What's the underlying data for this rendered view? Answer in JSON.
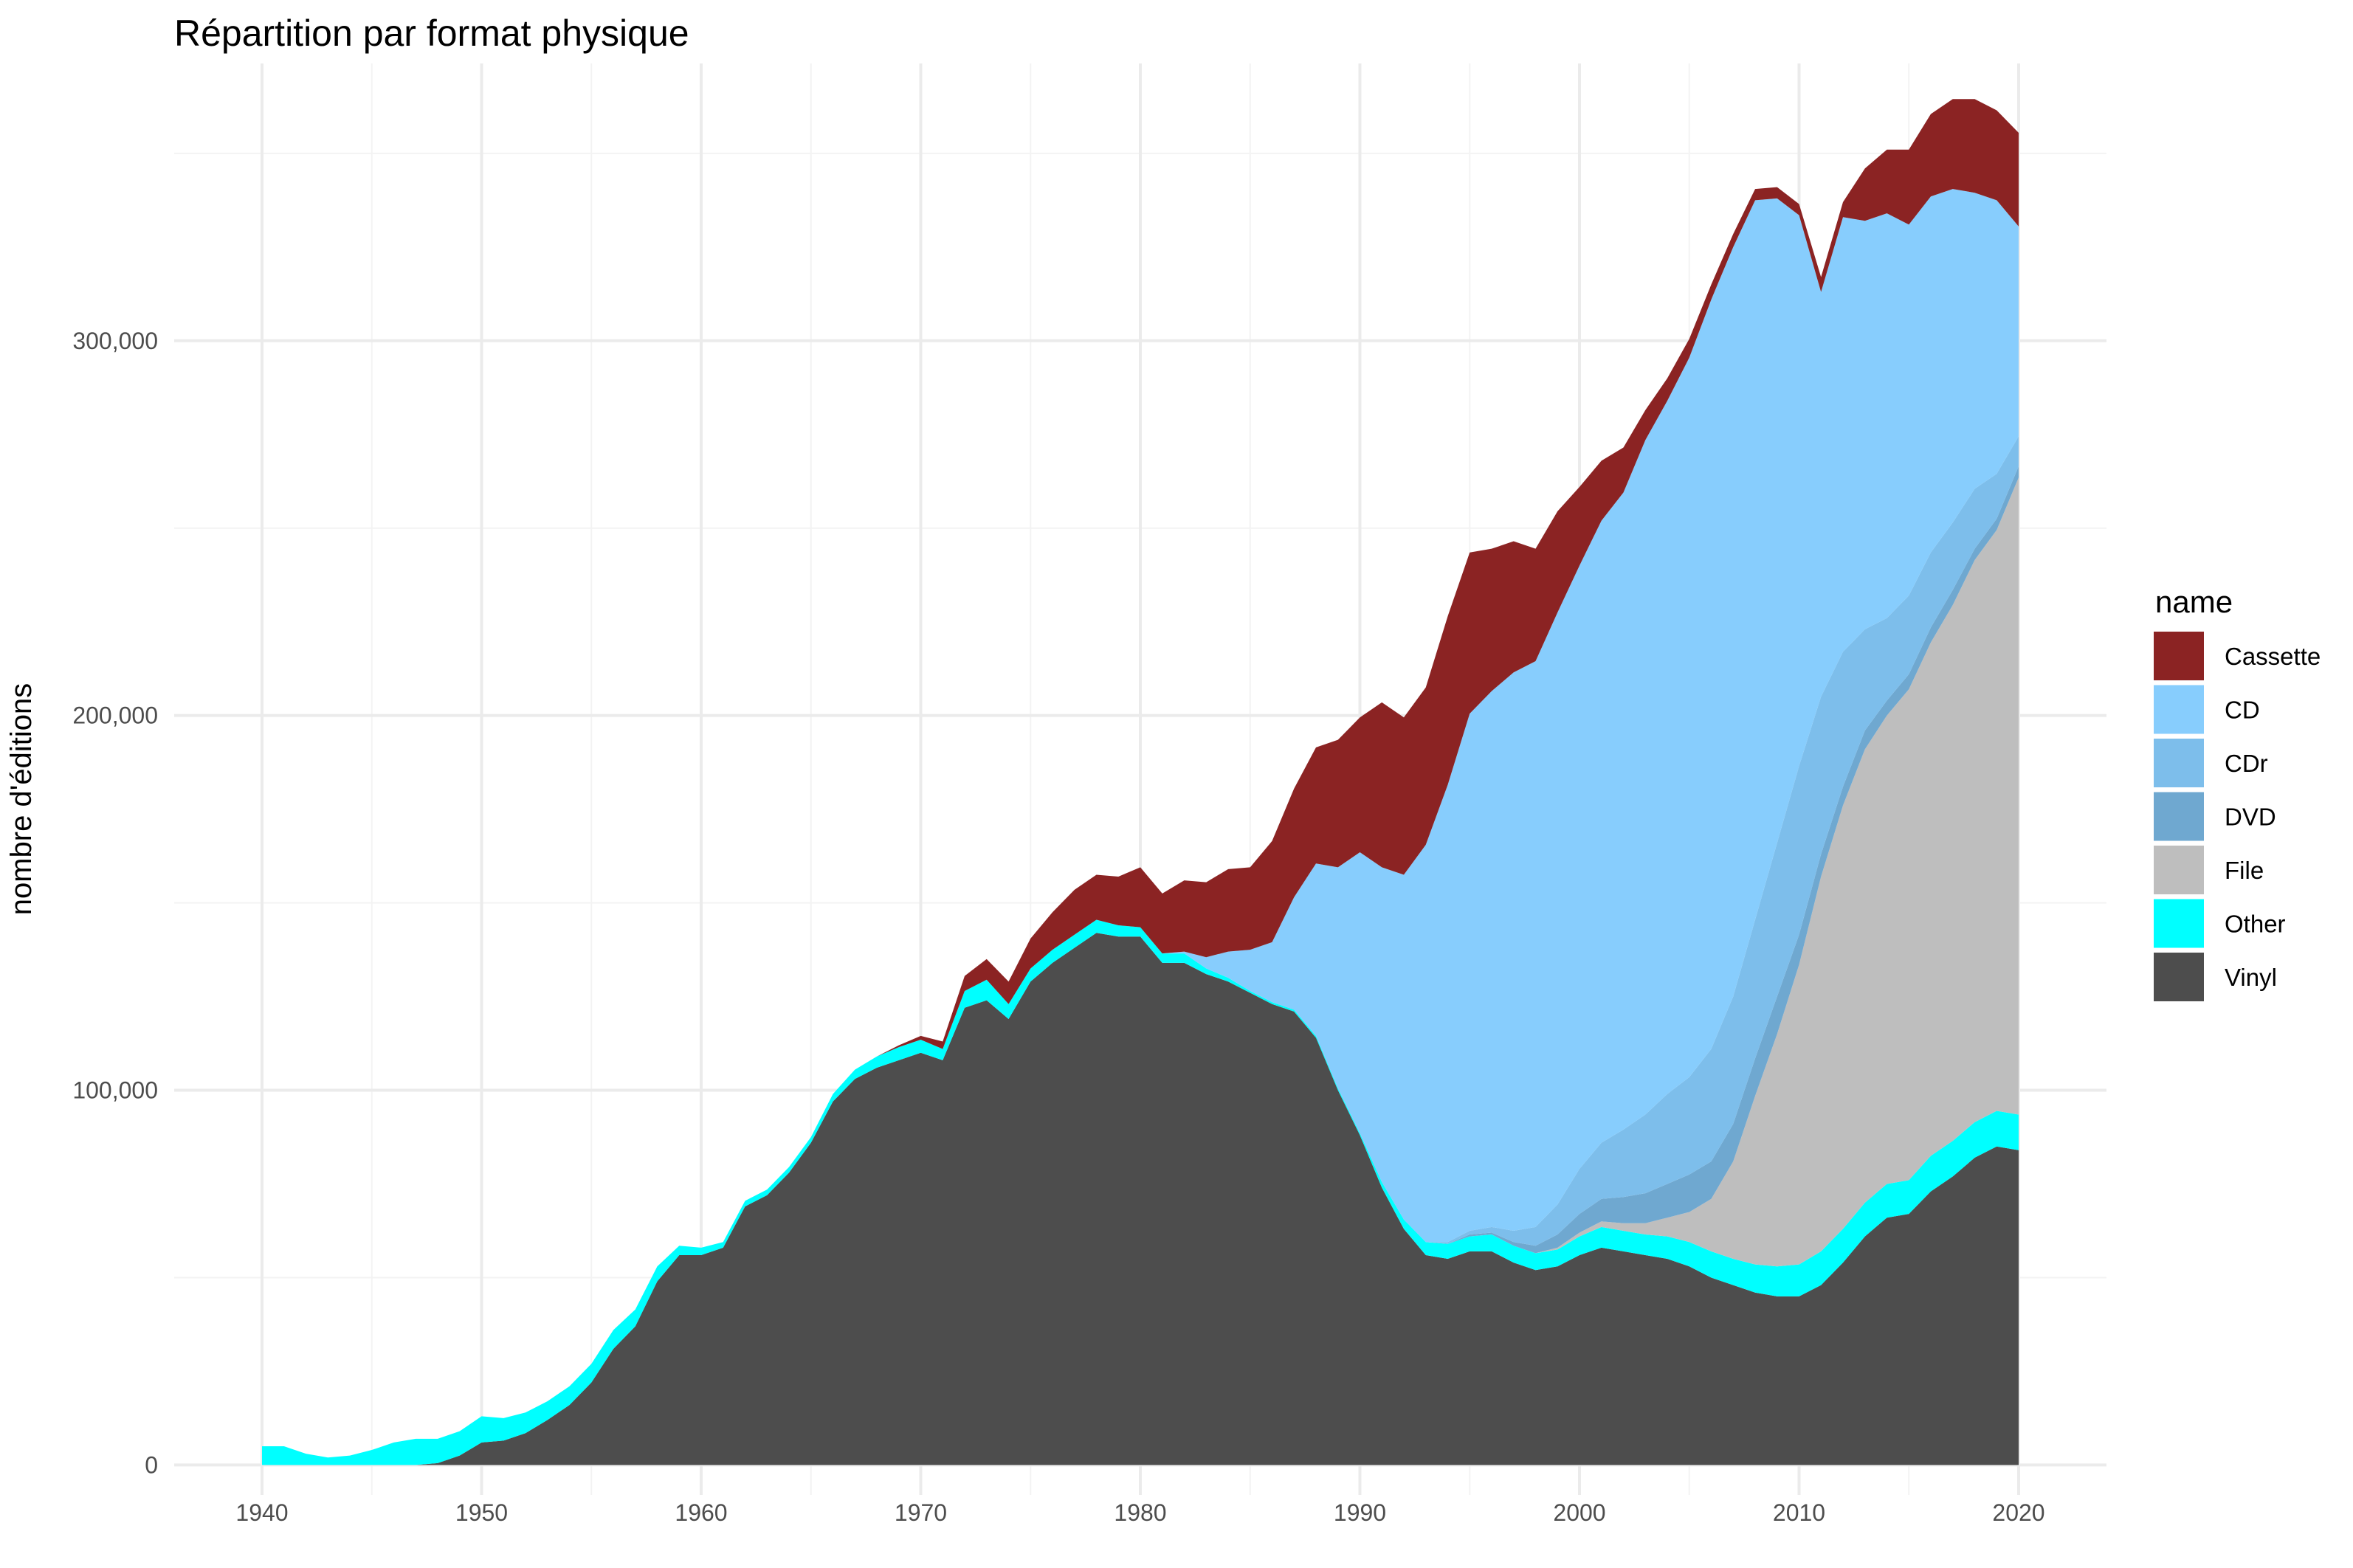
{
  "chart_data": {
    "type": "area",
    "stacked": true,
    "title": "Répartition par format physique",
    "xlabel": "",
    "ylabel": "nombre d'éditions",
    "xlim": [
      1936,
      2024
    ],
    "ylim": [
      -8000,
      374000
    ],
    "x_ticks": [
      1940,
      1950,
      1960,
      1970,
      1980,
      1990,
      2000,
      2010,
      2020
    ],
    "y_ticks": [
      0,
      100000,
      200000,
      300000
    ],
    "y_tick_labels": [
      "0",
      "100,000",
      "200,000",
      "300,000"
    ],
    "grid": true,
    "legend": {
      "title": "name",
      "position": "right"
    },
    "x": [
      1940,
      1941,
      1942,
      1943,
      1944,
      1945,
      1946,
      1947,
      1948,
      1949,
      1950,
      1951,
      1952,
      1953,
      1954,
      1955,
      1956,
      1957,
      1958,
      1959,
      1960,
      1961,
      1962,
      1963,
      1964,
      1965,
      1966,
      1967,
      1968,
      1969,
      1970,
      1971,
      1972,
      1973,
      1974,
      1975,
      1976,
      1977,
      1978,
      1979,
      1980,
      1981,
      1982,
      1983,
      1984,
      1985,
      1986,
      1987,
      1988,
      1989,
      1990,
      1991,
      1992,
      1993,
      1994,
      1995,
      1996,
      1997,
      1998,
      1999,
      2000,
      2001,
      2002,
      2003,
      2004,
      2005,
      2006,
      2007,
      2008,
      2009,
      2010,
      2011,
      2012,
      2013,
      2014,
      2015,
      2016,
      2017,
      2018,
      2019,
      2020
    ],
    "series": [
      {
        "name": "Vinyl",
        "color": "#4d4d4d",
        "values": [
          0,
          0,
          0,
          0,
          0,
          0,
          0,
          0,
          500,
          2500,
          6000,
          6500,
          8500,
          12000,
          16000,
          22000,
          31000,
          37000,
          49000,
          56000,
          56000,
          58000,
          69000,
          72000,
          78000,
          86000,
          97000,
          103000,
          106000,
          108000,
          110000,
          108000,
          122000,
          124000,
          119000,
          129000,
          134000,
          138000,
          142000,
          141000,
          141000,
          134000,
          134000,
          131000,
          129000,
          126000,
          123000,
          121000,
          114000,
          100000,
          88000,
          74000,
          63000,
          56000,
          55000,
          57000,
          57000,
          54000,
          52000,
          53000,
          56000,
          58000,
          57000,
          56000,
          55000,
          53000,
          50000,
          48000,
          46000,
          45000,
          45000,
          48000,
          54000,
          61000,
          66000,
          67000,
          73000,
          77000,
          82000,
          85000,
          84000
        ]
      },
      {
        "name": "Other",
        "color": "#00ffff",
        "values": [
          5000,
          5000,
          3000,
          2000,
          2500,
          4000,
          6000,
          7000,
          6500,
          6500,
          7000,
          6000,
          5500,
          5000,
          5000,
          5000,
          5000,
          4500,
          4000,
          2500,
          2000,
          1500,
          1500,
          1500,
          1500,
          1500,
          2000,
          2500,
          3000,
          3500,
          3500,
          3000,
          4500,
          5500,
          4000,
          3500,
          3500,
          3500,
          3500,
          3000,
          2500,
          2500,
          2500,
          1500,
          1000,
          500,
          500,
          500,
          500,
          500,
          500,
          1500,
          2500,
          3500,
          4000,
          4000,
          4500,
          4500,
          4500,
          4500,
          5000,
          5500,
          5500,
          5500,
          6000,
          6500,
          7000,
          7000,
          7500,
          8000,
          8500,
          9000,
          9000,
          9000,
          9000,
          9000,
          9500,
          9500,
          9500,
          9500,
          9500
        ]
      },
      {
        "name": "File",
        "color": "#bebebe",
        "values": [
          0,
          0,
          0,
          0,
          0,
          0,
          0,
          0,
          0,
          0,
          0,
          0,
          0,
          0,
          0,
          0,
          0,
          0,
          0,
          0,
          0,
          0,
          0,
          0,
          0,
          0,
          0,
          0,
          0,
          0,
          0,
          0,
          0,
          0,
          0,
          0,
          0,
          0,
          0,
          0,
          0,
          0,
          0,
          0,
          0,
          0,
          0,
          0,
          0,
          0,
          0,
          0,
          0,
          0,
          0,
          0,
          0,
          0,
          0,
          500,
          1000,
          1500,
          2000,
          3000,
          5000,
          8000,
          14000,
          26000,
          45000,
          62000,
          80000,
          100000,
          113000,
          121000,
          125000,
          131000,
          137000,
          143000,
          150000,
          155000,
          170000
        ]
      },
      {
        "name": "DVD",
        "color": "#6fa8d0",
        "values": [
          0,
          0,
          0,
          0,
          0,
          0,
          0,
          0,
          0,
          0,
          0,
          0,
          0,
          0,
          0,
          0,
          0,
          0,
          0,
          0,
          0,
          0,
          0,
          0,
          0,
          0,
          0,
          0,
          0,
          0,
          0,
          0,
          0,
          0,
          0,
          0,
          0,
          0,
          0,
          0,
          0,
          0,
          0,
          0,
          0,
          0,
          0,
          0,
          0,
          0,
          0,
          0,
          0,
          0,
          0,
          500,
          500,
          1000,
          2000,
          3500,
          5000,
          6000,
          7000,
          8000,
          9000,
          10000,
          10000,
          10000,
          10000,
          10000,
          8000,
          6000,
          5000,
          5000,
          4000,
          4000,
          4000,
          4000,
          3000,
          3000,
          3000
        ]
      },
      {
        "name": "CDr",
        "color": "#7dbeeb",
        "values": [
          0,
          0,
          0,
          0,
          0,
          0,
          0,
          0,
          0,
          0,
          0,
          0,
          0,
          0,
          0,
          0,
          0,
          0,
          0,
          0,
          0,
          0,
          0,
          0,
          0,
          0,
          0,
          0,
          0,
          0,
          0,
          0,
          0,
          0,
          0,
          0,
          0,
          0,
          0,
          0,
          0,
          0,
          0,
          0,
          0,
          0,
          0,
          0,
          0,
          0,
          0,
          0,
          0,
          0,
          500,
          1000,
          1500,
          3000,
          5000,
          8000,
          12000,
          15000,
          18000,
          21000,
          24000,
          26000,
          30000,
          34000,
          37000,
          41000,
          45000,
          42000,
          36000,
          27000,
          22000,
          21000,
          20000,
          18000,
          16000,
          12000,
          8000
        ]
      },
      {
        "name": "CD",
        "color": "#87cdfd",
        "values": [
          0,
          0,
          0,
          0,
          0,
          0,
          0,
          0,
          0,
          0,
          0,
          0,
          0,
          0,
          0,
          0,
          0,
          0,
          0,
          0,
          0,
          0,
          0,
          0,
          0,
          0,
          0,
          0,
          0,
          0,
          0,
          0,
          0,
          0,
          0,
          0,
          0,
          0,
          0,
          0,
          0,
          0,
          500,
          3000,
          7000,
          11000,
          16000,
          30000,
          46000,
          59000,
          75000,
          84000,
          92000,
          106000,
          122000,
          138000,
          143000,
          149000,
          151000,
          158000,
          161000,
          166000,
          170000,
          180000,
          185000,
          192000,
          200000,
          200000,
          192000,
          172000,
          147000,
          108000,
          116000,
          109000,
          108000,
          99000,
          95000,
          89000,
          79000,
          73000,
          56000
        ]
      },
      {
        "name": "Cassette",
        "color": "#8b2323",
        "values": [
          0,
          0,
          0,
          0,
          0,
          0,
          0,
          0,
          0,
          0,
          0,
          0,
          0,
          0,
          0,
          0,
          0,
          0,
          0,
          0,
          0,
          0,
          0,
          0,
          0,
          0,
          0,
          0,
          0,
          500,
          1000,
          2000,
          4000,
          5500,
          6000,
          8000,
          10000,
          12000,
          12000,
          13000,
          16000,
          16000,
          19000,
          20000,
          22000,
          22000,
          27000,
          29000,
          31000,
          34000,
          36000,
          44000,
          42000,
          42000,
          45000,
          43000,
          38000,
          35000,
          30000,
          27000,
          21000,
          16000,
          12000,
          8000,
          6000,
          5000,
          4000,
          3500,
          3000,
          3000,
          3000,
          4000,
          4000,
          14000,
          17000,
          20000,
          22000,
          24000,
          25000,
          24000,
          25000
        ]
      }
    ]
  }
}
